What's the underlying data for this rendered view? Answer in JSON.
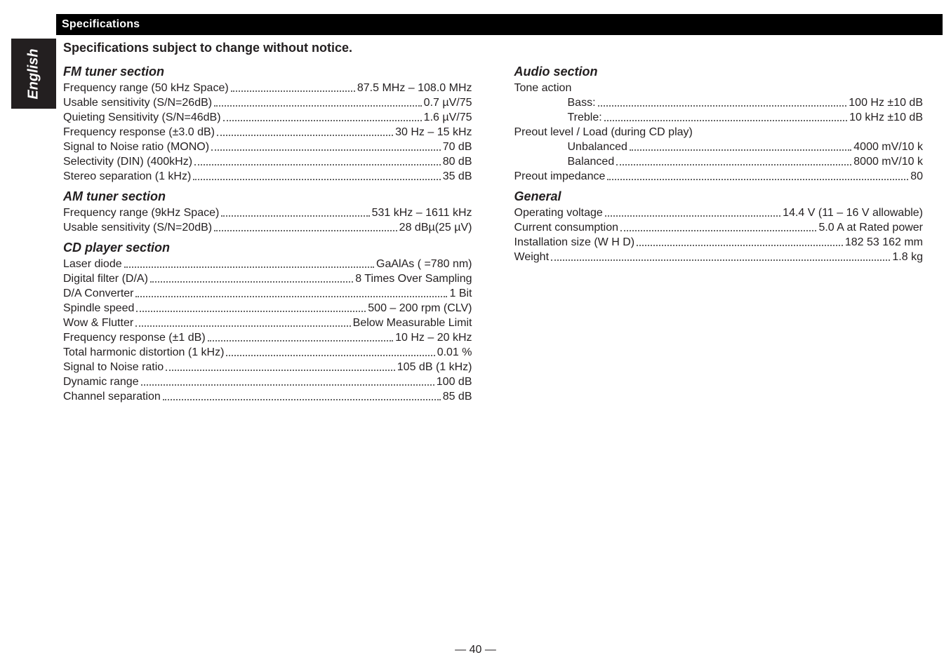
{
  "topbar_title": "Specifications",
  "subtitle": "Specifications subject to change without notice.",
  "side_tab_label": "English",
  "page_number": "— 40 —",
  "left_sections": [
    {
      "title": "FM tuner section",
      "lines": [
        {
          "label": "Frequency range (50 kHz Space)",
          "value": "87.5 MHz – 108.0 MHz",
          "indent": 0
        },
        {
          "label": "Usable sensitivity (S/N=26dB)",
          "value": "0.7 µV/75",
          "indent": 0
        },
        {
          "label": "Quieting Sensitivity (S/N=46dB)",
          "value": "1.6 µV/75",
          "indent": 0
        },
        {
          "label": "Frequency response (±3.0 dB)",
          "value": "30 Hz – 15 kHz",
          "indent": 0
        },
        {
          "label": "Signal to Noise ratio (MONO)",
          "value": "70 dB",
          "indent": 0
        },
        {
          "label": "Selectivity (DIN) (400kHz)",
          "value": " 80 dB",
          "indent": 0
        },
        {
          "label": "Stereo separation (1 kHz)",
          "value": "35 dB",
          "indent": 0
        }
      ]
    },
    {
      "title": "AM tuner section",
      "lines": [
        {
          "label": "Frequency range (9kHz Space)",
          "value": "531 kHz – 1611 kHz",
          "indent": 0
        },
        {
          "label": "Usable sensitivity (S/N=20dB)",
          "value": "28 dBµ(25 µV)",
          "indent": 0
        }
      ]
    },
    {
      "title": "CD player section",
      "lines": [
        {
          "label": "Laser diode",
          "value": "GaAlAs (   =780 nm)",
          "indent": 0
        },
        {
          "label": "Digital filter (D/A)",
          "value": "8 Times Over Sampling",
          "indent": 0
        },
        {
          "label": "D/A Converter",
          "value": "1 Bit",
          "indent": 0
        },
        {
          "label": "Spindle speed",
          "value": "500 – 200 rpm (CLV)",
          "indent": 0
        },
        {
          "label": "Wow & Flutter",
          "value": "Below Measurable Limit",
          "indent": 0
        },
        {
          "label": "Frequency response (±1 dB)",
          "value": "10 Hz – 20 kHz",
          "indent": 0
        },
        {
          "label": "Total harmonic distortion (1 kHz)",
          "value": "0.01 %",
          "indent": 0
        },
        {
          "label": "Signal to Noise ratio",
          "value": "105 dB (1 kHz)",
          "indent": 0
        },
        {
          "label": "Dynamic range",
          "value": "100 dB",
          "indent": 0
        },
        {
          "label": "Channel separation",
          "value": "85 dB",
          "indent": 0
        }
      ]
    }
  ],
  "right_sections": [
    {
      "title": "Audio section",
      "lines": [
        {
          "label": "Tone action",
          "value": "",
          "indent": 0,
          "nodots": true
        },
        {
          "label": "Bass:",
          "value": "100 Hz ±10 dB",
          "indent": 2
        },
        {
          "label": "Treble:",
          "value": "10 kHz ±10 dB",
          "indent": 2
        },
        {
          "label": "Preout level / Load (during CD play)",
          "value": "",
          "indent": 0,
          "nodots": true
        },
        {
          "label": "Unbalanced",
          "value": "4000 mV/10 k",
          "indent": 2
        },
        {
          "label": "Balanced",
          "value": "8000 mV/10 k",
          "indent": 2
        },
        {
          "label": "Preout impedance",
          "value": "80",
          "indent": 0
        }
      ]
    },
    {
      "title": "General",
      "lines": [
        {
          "label": "Operating voltage",
          "value": "14.4 V (11 – 16 V allowable)",
          "indent": 0
        },
        {
          "label": "Current consumption",
          "value": "5.0 A at Rated power",
          "indent": 0
        },
        {
          "label": "Installation size (W    H    D)",
          "value": "182    53    162 mm",
          "indent": 0
        },
        {
          "label": "Weight",
          "value": "1.8 kg",
          "indent": 0
        }
      ]
    }
  ]
}
